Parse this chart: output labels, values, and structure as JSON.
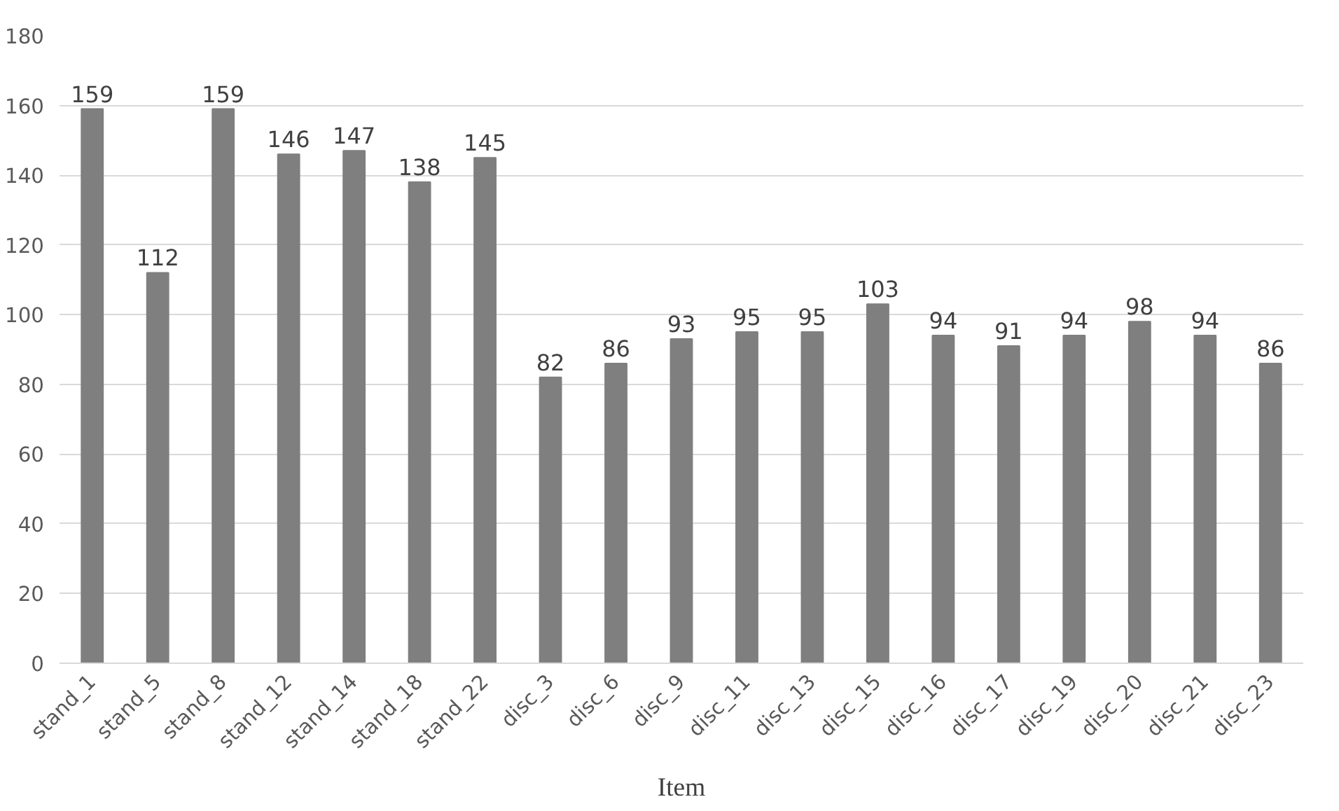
{
  "chart_data": {
    "type": "bar",
    "xlabel": "Item",
    "categories": [
      "stand_1",
      "stand_5",
      "stand_8",
      "stand_12",
      "stand_14",
      "stand_18",
      "stand_22",
      "disc_3",
      "disc_6",
      "disc_9",
      "disc_11",
      "disc_13",
      "disc_15",
      "disc_16",
      "disc_17",
      "disc_19",
      "disc_20",
      "disc_21",
      "disc_23"
    ],
    "values": [
      159,
      112,
      159,
      146,
      147,
      138,
      145,
      82,
      86,
      93,
      95,
      95,
      103,
      94,
      91,
      94,
      98,
      94,
      86
    ],
    "color": "#7f7f7f",
    "ylim": [
      0,
      180
    ],
    "yticks": [
      0,
      20,
      40,
      60,
      80,
      100,
      120,
      140,
      160,
      180
    ],
    "grid": "y",
    "data_labels": true
  }
}
